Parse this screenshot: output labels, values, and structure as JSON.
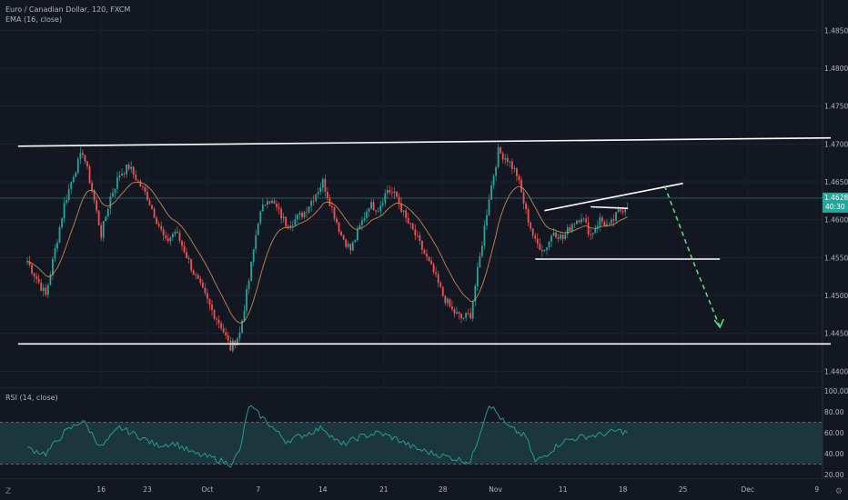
{
  "legend": {
    "symbol_line": "Euro / Canadian Dollar, 120, FXCM",
    "indicator_line": "EMA (16, close)"
  },
  "rsi_legend": "RSI (14, close)",
  "price_axis": {
    "ticks": [
      "1.48500",
      "1.48000",
      "1.47500",
      "1.47000",
      "1.46500",
      "1.46285",
      "1.46000",
      "1.45500",
      "1.45000",
      "1.44500",
      "1.44000"
    ],
    "current_price": "1.46285",
    "countdown": "40:30"
  },
  "rsi_axis": {
    "ticks": [
      "100.00",
      "80.00",
      "60.00",
      "40.00",
      "20.00"
    ]
  },
  "time_axis": {
    "ticks": [
      "16",
      "23",
      "Oct",
      "7",
      "14",
      "21",
      "28",
      "Nov",
      "11",
      "18",
      "25",
      "Dec",
      "9"
    ]
  },
  "corner_label": "Z",
  "tools_label": "⚙",
  "colors": {
    "background": "#131722",
    "up_candle": "#26a69a",
    "down_candle": "#ef5350",
    "ema": "#e09b59",
    "trendline": "#ffffff",
    "projection": "#5bd97a",
    "rsi_line": "#26a69a",
    "rsi_band": "#1d3a3f"
  },
  "chart_data": {
    "type": "candlestick",
    "instrument": "Euro / Canadian Dollar",
    "timeframe": "120",
    "source": "FXCM",
    "ylim": [
      1.438,
      1.489
    ],
    "current_price": 1.46285,
    "close_path": [
      [
        0,
        1.4545
      ],
      [
        2,
        1.45
      ],
      [
        3,
        1.456
      ],
      [
        4,
        1.462
      ],
      [
        5,
        1.466
      ],
      [
        6,
        1.469
      ],
      [
        7,
        1.464
      ],
      [
        8,
        1.458
      ],
      [
        9,
        1.463
      ],
      [
        10,
        1.466
      ],
      [
        11,
        1.467
      ],
      [
        12,
        1.465
      ],
      [
        13,
        1.463
      ],
      [
        14,
        1.46
      ],
      [
        15,
        1.457
      ],
      [
        16,
        1.4585
      ],
      [
        17,
        1.456
      ],
      [
        18,
        1.453
      ],
      [
        19,
        1.4505
      ],
      [
        20,
        1.448
      ],
      [
        21,
        1.446
      ],
      [
        22,
        1.443
      ],
      [
        23,
        1.445
      ],
      [
        24,
        1.452
      ],
      [
        25,
        1.46
      ],
      [
        26,
        1.463
      ],
      [
        27,
        1.4615
      ],
      [
        28,
        1.4595
      ],
      [
        29,
        1.46
      ],
      [
        30,
        1.461
      ],
      [
        31,
        1.463
      ],
      [
        32,
        1.465
      ],
      [
        33,
        1.4615
      ],
      [
        34,
        1.458
      ],
      [
        35,
        1.456
      ],
      [
        36,
        1.459
      ],
      [
        37,
        1.462
      ],
      [
        38,
        1.4615
      ],
      [
        39,
        1.464
      ],
      [
        40,
        1.463
      ],
      [
        41,
        1.46
      ],
      [
        42,
        1.458
      ],
      [
        43,
        1.4555
      ],
      [
        44,
        1.453
      ],
      [
        45,
        1.45
      ],
      [
        46,
        1.448
      ],
      [
        47,
        1.447
      ],
      [
        48,
        1.4475
      ],
      [
        49,
        1.455
      ],
      [
        50,
        1.463
      ],
      [
        51,
        1.469
      ],
      [
        52,
        1.468
      ],
      [
        53,
        1.466
      ],
      [
        54,
        1.461
      ],
      [
        55,
        1.457
      ],
      [
        56,
        1.456
      ],
      [
        57,
        1.4585
      ],
      [
        58,
        1.4575
      ],
      [
        59,
        1.4595
      ],
      [
        60,
        1.4605
      ],
      [
        61,
        1.458
      ],
      [
        62,
        1.46
      ],
      [
        63,
        1.459
      ],
      [
        64,
        1.461
      ],
      [
        65,
        1.462
      ]
    ],
    "trendlines": [
      {
        "from": [
          -1,
          1.4697
        ],
        "to": [
          87,
          1.4708
        ],
        "name": "top"
      },
      {
        "from": [
          -1,
          1.4436
        ],
        "to": [
          87,
          1.4436
        ],
        "name": "bottom"
      },
      {
        "from": [
          55,
          1.4548
        ],
        "to": [
          75,
          1.4548
        ],
        "name": "pattern-base"
      },
      {
        "from": [
          56,
          1.4612
        ],
        "to": [
          71,
          1.4648
        ],
        "name": "pattern-top"
      },
      {
        "from": [
          61,
          1.4617
        ],
        "to": [
          65,
          1.4615
        ],
        "name": "flag"
      }
    ],
    "projection": [
      [
        69,
        1.4645
      ],
      [
        72,
        1.4548
      ],
      [
        75,
        1.4458
      ]
    ],
    "rsi": {
      "ylim": [
        20,
        100
      ],
      "overbought": 70,
      "oversold": 30,
      "path": [
        [
          0,
          45
        ],
        [
          2,
          40
        ],
        [
          4,
          60
        ],
        [
          6,
          72
        ],
        [
          8,
          46
        ],
        [
          10,
          65
        ],
        [
          12,
          57
        ],
        [
          14,
          48
        ],
        [
          16,
          50
        ],
        [
          18,
          40
        ],
        [
          20,
          36
        ],
        [
          22,
          30
        ],
        [
          23,
          42
        ],
        [
          24,
          86
        ],
        [
          26,
          70
        ],
        [
          28,
          52
        ],
        [
          30,
          58
        ],
        [
          32,
          65
        ],
        [
          34,
          48
        ],
        [
          36,
          56
        ],
        [
          38,
          60
        ],
        [
          40,
          54
        ],
        [
          42,
          45
        ],
        [
          44,
          40
        ],
        [
          46,
          36
        ],
        [
          48,
          32
        ],
        [
          49,
          60
        ],
        [
          50,
          88
        ],
        [
          52,
          66
        ],
        [
          54,
          56
        ],
        [
          55,
          32
        ],
        [
          56,
          38
        ],
        [
          58,
          52
        ],
        [
          60,
          56
        ],
        [
          62,
          58
        ],
        [
          64,
          62
        ],
        [
          65,
          60
        ]
      ]
    }
  }
}
